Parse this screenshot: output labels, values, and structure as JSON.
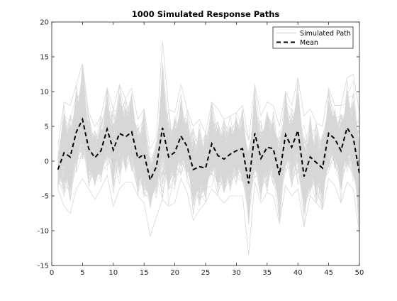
{
  "chart_data": {
    "type": "line",
    "title": "1000 Simulated Response Paths",
    "xlabel": "",
    "ylabel": "",
    "xlim": [
      0,
      50
    ],
    "ylim": [
      -15,
      20
    ],
    "xticks": [
      0,
      5,
      10,
      15,
      20,
      25,
      30,
      35,
      40,
      45,
      50
    ],
    "yticks": [
      -15,
      -10,
      -5,
      0,
      5,
      10,
      15,
      20
    ],
    "grid": false,
    "legend": {
      "placement": "top-right",
      "entries": [
        "Simulated Path",
        "Mean"
      ]
    },
    "x": [
      1,
      2,
      3,
      4,
      5,
      6,
      7,
      8,
      9,
      10,
      11,
      12,
      13,
      14,
      15,
      16,
      17,
      18,
      19,
      20,
      21,
      22,
      23,
      24,
      25,
      26,
      27,
      28,
      29,
      30,
      31,
      32,
      33,
      34,
      35,
      36,
      37,
      38,
      39,
      40,
      41,
      42,
      43,
      44,
      45,
      46,
      47,
      48,
      49,
      50
    ],
    "series": [
      {
        "name": "Mean",
        "style": "dashed",
        "color": "#000000",
        "values": [
          -1.2,
          1.2,
          0.6,
          4.2,
          6.0,
          1.8,
          0.5,
          1.5,
          4.6,
          1.6,
          4.0,
          3.5,
          4.2,
          0.4,
          1.0,
          -2.7,
          -0.8,
          4.8,
          0.6,
          1.3,
          3.6,
          2.1,
          -1.2,
          -0.8,
          -1.0,
          2.5,
          0.8,
          0.3,
          1.0,
          1.5,
          1.8,
          -3.2,
          4.0,
          0.4,
          2.0,
          1.8,
          -2.0,
          3.8,
          2.0,
          4.4,
          -2.2,
          0.6,
          -0.2,
          -1.0,
          4.0,
          3.2,
          1.5,
          4.8,
          3.4,
          -1.8
        ]
      },
      {
        "name": "Simulated Path",
        "color": "#d7d7d7",
        "count": 1000,
        "upper_envelope": [
          2,
          8.5,
          8,
          11,
          14,
          7,
          5,
          6.5,
          10.5,
          7.5,
          11,
          9,
          10.5,
          6,
          7.5,
          1.8,
          3.5,
          17.2,
          7.5,
          7,
          11,
          7.5,
          5,
          6,
          4,
          8.5,
          7.5,
          6,
          6.5,
          7,
          8,
          3,
          11,
          6.5,
          8.5,
          8,
          5,
          10,
          8,
          12,
          6.5,
          7.5,
          5.5,
          5,
          10.5,
          8,
          8,
          12,
          12.5,
          7
        ],
        "lower_envelope": [
          -4,
          -6.5,
          -7.5,
          -4,
          -2.5,
          -4,
          -5.5,
          -4,
          -2,
          -6.5,
          -4,
          -3,
          -3,
          -5,
          -6,
          -10.8,
          -8,
          -5.5,
          -6.5,
          -6,
          -2.5,
          -4.5,
          -8.5,
          -7,
          -6,
          -4,
          -5,
          -6,
          -5,
          -5,
          -5,
          -13.5,
          -3,
          -6,
          -4.5,
          -5,
          -9,
          -3.5,
          -5,
          -4,
          -9.5,
          -5,
          -6,
          -7,
          -2.5,
          -3.5,
          -6,
          -3,
          -4,
          -10.5
        ]
      }
    ]
  }
}
